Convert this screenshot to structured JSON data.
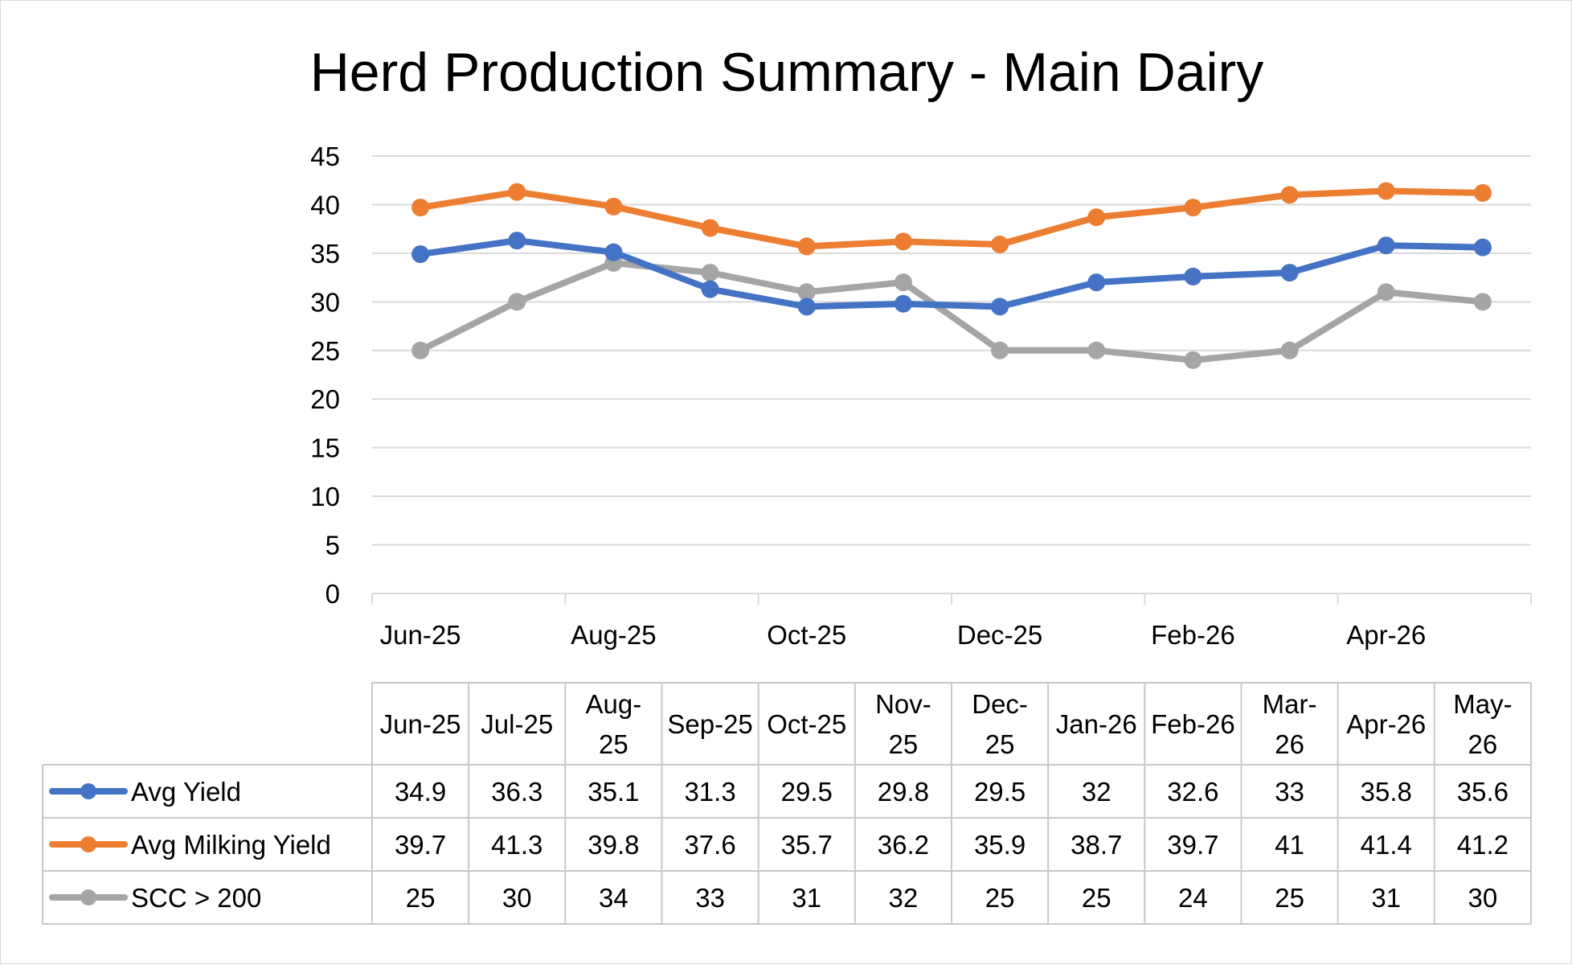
{
  "chart_data": {
    "type": "line",
    "title": "Herd Production Summary - Main Dairy",
    "xlabel": "",
    "ylabel": "",
    "ylim": [
      0,
      45
    ],
    "yticks": [
      "0",
      "5",
      "10",
      "15",
      "20",
      "25",
      "30",
      "35",
      "40",
      "45"
    ],
    "xtick_labels": [
      "Jun-25",
      "Aug-25",
      "Oct-25",
      "Dec-25",
      "Feb-26",
      "Apr-26"
    ],
    "categories": [
      "Jun-25",
      "Jul-25",
      "Aug-25",
      "Sep-25",
      "Oct-25",
      "Nov-25",
      "Dec-25",
      "Jan-26",
      "Feb-26",
      "Mar-26",
      "Apr-26",
      "May-26"
    ],
    "series": [
      {
        "name": "Avg Yield",
        "color": "#4472C4",
        "values": [
          34.9,
          36.3,
          35.1,
          31.3,
          29.5,
          29.8,
          29.5,
          32,
          32.6,
          33,
          35.8,
          35.6
        ]
      },
      {
        "name": "Avg Milking Yield",
        "color": "#ED7D31",
        "values": [
          39.7,
          41.3,
          39.8,
          37.6,
          35.7,
          36.2,
          35.9,
          38.7,
          39.7,
          41,
          41.4,
          41.2
        ]
      },
      {
        "name": "SCC > 200",
        "color": "#A5A5A5",
        "values": [
          25,
          30,
          34,
          33,
          31,
          32,
          25,
          25,
          24,
          25,
          31,
          30
        ]
      }
    ],
    "data_table": {
      "header": [
        [
          "Jun-25"
        ],
        [
          "Jul-25"
        ],
        [
          "Aug-",
          "25"
        ],
        [
          "Sep-25"
        ],
        [
          "Oct-25"
        ],
        [
          "Nov-",
          "25"
        ],
        [
          "Dec-",
          "25"
        ],
        [
          "Jan-26"
        ],
        [
          "Feb-26"
        ],
        [
          "Mar-",
          "26"
        ],
        [
          "Apr-26"
        ],
        [
          "May-",
          "26"
        ]
      ],
      "rows": [
        [
          "34.9",
          "36.3",
          "35.1",
          "31.3",
          "29.5",
          "29.8",
          "29.5",
          "32",
          "32.6",
          "33",
          "35.8",
          "35.6"
        ],
        [
          "39.7",
          "41.3",
          "39.8",
          "37.6",
          "35.7",
          "36.2",
          "35.9",
          "38.7",
          "39.7",
          "41",
          "41.4",
          "41.2"
        ],
        [
          "25",
          "30",
          "34",
          "33",
          "31",
          "32",
          "25",
          "25",
          "24",
          "25",
          "31",
          "30"
        ]
      ]
    },
    "grid": true,
    "legend": "data-table"
  }
}
